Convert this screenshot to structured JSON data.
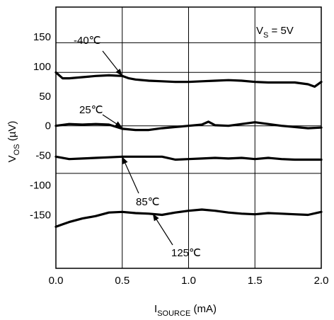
{
  "chart_data": {
    "type": "line",
    "xlabel": {
      "main": "I",
      "sub": "SOURCE",
      "unit": " (mA)"
    },
    "ylabel": {
      "main": "V",
      "sub": "OS",
      "unit": " (µV)"
    },
    "xlim": [
      0,
      2
    ],
    "ylim": [
      -240,
      200
    ],
    "grid": true,
    "x_ticks": [
      "0.0",
      "0.5",
      "1.0",
      "1.5",
      "2.0"
    ],
    "y_ticks": [
      {
        "label": "150",
        "value": 150
      },
      {
        "label": "100",
        "value": 100
      },
      {
        "label": "50",
        "value": 50
      },
      {
        "label": "0",
        "value": 0
      },
      {
        "label": "-50",
        "value": -50
      },
      {
        "label": "-100",
        "value": -100
      },
      {
        "label": "-150",
        "value": -150
      }
    ],
    "h_gridlines": [
      140,
      90,
      0,
      -80
    ],
    "v_gridlines": [
      0.5,
      1.0,
      1.5
    ],
    "condition": {
      "main": "V",
      "sub": "S",
      "rest": " = 5V"
    },
    "series": [
      {
        "name": "-40℃",
        "x": [
          0.0,
          0.05,
          0.1,
          0.2,
          0.3,
          0.4,
          0.5,
          0.55,
          0.6,
          0.7,
          0.8,
          0.9,
          1.0,
          1.1,
          1.2,
          1.3,
          1.4,
          1.5,
          1.6,
          1.7,
          1.8,
          1.9,
          1.95,
          2.0
        ],
        "y": [
          90,
          80,
          80,
          82,
          84,
          85,
          84,
          80,
          78,
          76,
          75,
          74,
          74,
          75,
          76,
          77,
          76,
          74,
          73,
          73,
          73,
          70,
          66,
          74
        ]
      },
      {
        "name": "25℃",
        "x": [
          0.0,
          0.1,
          0.2,
          0.3,
          0.4,
          0.5,
          0.6,
          0.7,
          0.8,
          0.9,
          1.0,
          1.1,
          1.15,
          1.2,
          1.3,
          1.4,
          1.5,
          1.6,
          1.7,
          1.8,
          1.9,
          2.0
        ],
        "y": [
          0,
          3,
          2,
          3,
          2,
          -5,
          -7,
          -7,
          -4,
          -2,
          0,
          2,
          7,
          1,
          0,
          3,
          6,
          3,
          0,
          -2,
          -4,
          -3
        ]
      },
      {
        "name": "85℃",
        "x": [
          0.0,
          0.1,
          0.2,
          0.3,
          0.4,
          0.5,
          0.6,
          0.7,
          0.8,
          0.9,
          1.0,
          1.1,
          1.2,
          1.3,
          1.4,
          1.5,
          1.6,
          1.7,
          1.8,
          1.9,
          2.0
        ],
        "y": [
          -52,
          -56,
          -55,
          -54,
          -53,
          -52,
          -52,
          -52,
          -52,
          -57,
          -56,
          -55,
          -54,
          -55,
          -54,
          -56,
          -54,
          -56,
          -57,
          -57,
          -57
        ]
      },
      {
        "name": "125℃",
        "x": [
          0.0,
          0.05,
          0.1,
          0.2,
          0.3,
          0.4,
          0.5,
          0.6,
          0.7,
          0.8,
          0.9,
          1.0,
          1.1,
          1.2,
          1.3,
          1.4,
          1.5,
          1.6,
          1.7,
          1.8,
          1.9,
          2.0
        ],
        "y": [
          -170,
          -166,
          -162,
          -156,
          -152,
          -146,
          -145,
          -147,
          -148,
          -150,
          -146,
          -143,
          -141,
          -143,
          -146,
          -148,
          -149,
          -147,
          -148,
          -149,
          -150,
          -145
        ]
      }
    ],
    "annotations": [
      {
        "text": "-40℃",
        "series": "-40℃",
        "at_x": 0.5,
        "at_y": 84
      },
      {
        "text": "25℃",
        "series": "25℃",
        "at_x": 0.5,
        "at_y": -3
      },
      {
        "text": "85℃",
        "series": "85℃",
        "at_x": 0.5,
        "at_y": -52
      },
      {
        "text": "125℃",
        "series": "125℃",
        "at_x": 0.73,
        "at_y": -148
      }
    ],
    "colors": {
      "line": "#000000",
      "grid": "#000000",
      "background": "#ffffff"
    }
  }
}
